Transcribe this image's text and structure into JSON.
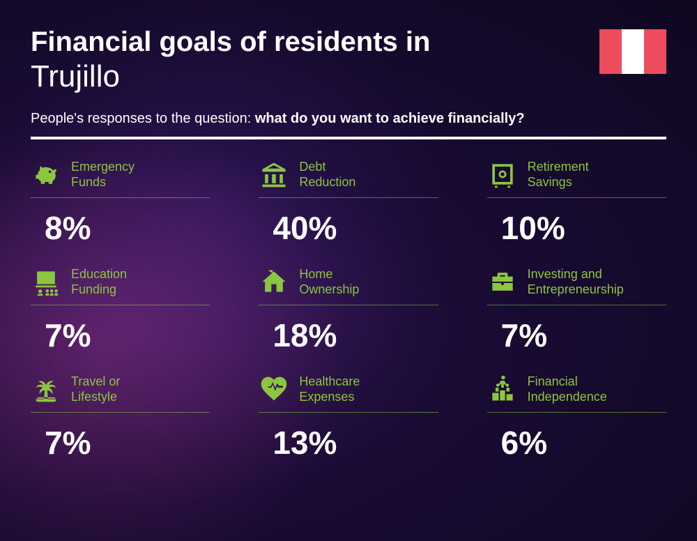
{
  "header": {
    "title_line1": "Financial goals of residents in",
    "title_city": "Trujillo",
    "subtitle_prefix": "People's responses to the question: ",
    "subtitle_bold": "what do you want to achieve financially?"
  },
  "flag": {
    "country": "Peru",
    "colors": [
      "#ed4c5c",
      "#ffffff",
      "#ed4c5c"
    ]
  },
  "styling": {
    "accent_color": "#8cc63f",
    "text_color": "#ffffff",
    "background_gradient": [
      "#3d1a5c",
      "#1a0b35",
      "#0f0820"
    ],
    "title_fontsize": 40,
    "city_fontsize": 44,
    "subtitle_fontsize": 20,
    "label_fontsize": 18,
    "value_fontsize": 46,
    "grid_columns": 3,
    "grid_rows": 3
  },
  "items": [
    {
      "icon": "piggy-bank",
      "label": "Emergency\nFunds",
      "value": "8%"
    },
    {
      "icon": "bank",
      "label": "Debt\nReduction",
      "value": "40%"
    },
    {
      "icon": "safe",
      "label": "Retirement\nSavings",
      "value": "10%"
    },
    {
      "icon": "education",
      "label": "Education\nFunding",
      "value": "7%"
    },
    {
      "icon": "house",
      "label": "Home\nOwnership",
      "value": "18%"
    },
    {
      "icon": "briefcase",
      "label": "Investing and\nEntrepreneurship",
      "value": "7%"
    },
    {
      "icon": "palm",
      "label": "Travel or\nLifestyle",
      "value": "7%"
    },
    {
      "icon": "heart-pulse",
      "label": "Healthcare\nExpenses",
      "value": "13%"
    },
    {
      "icon": "podium",
      "label": "Financial\nIndependence",
      "value": "6%"
    }
  ]
}
